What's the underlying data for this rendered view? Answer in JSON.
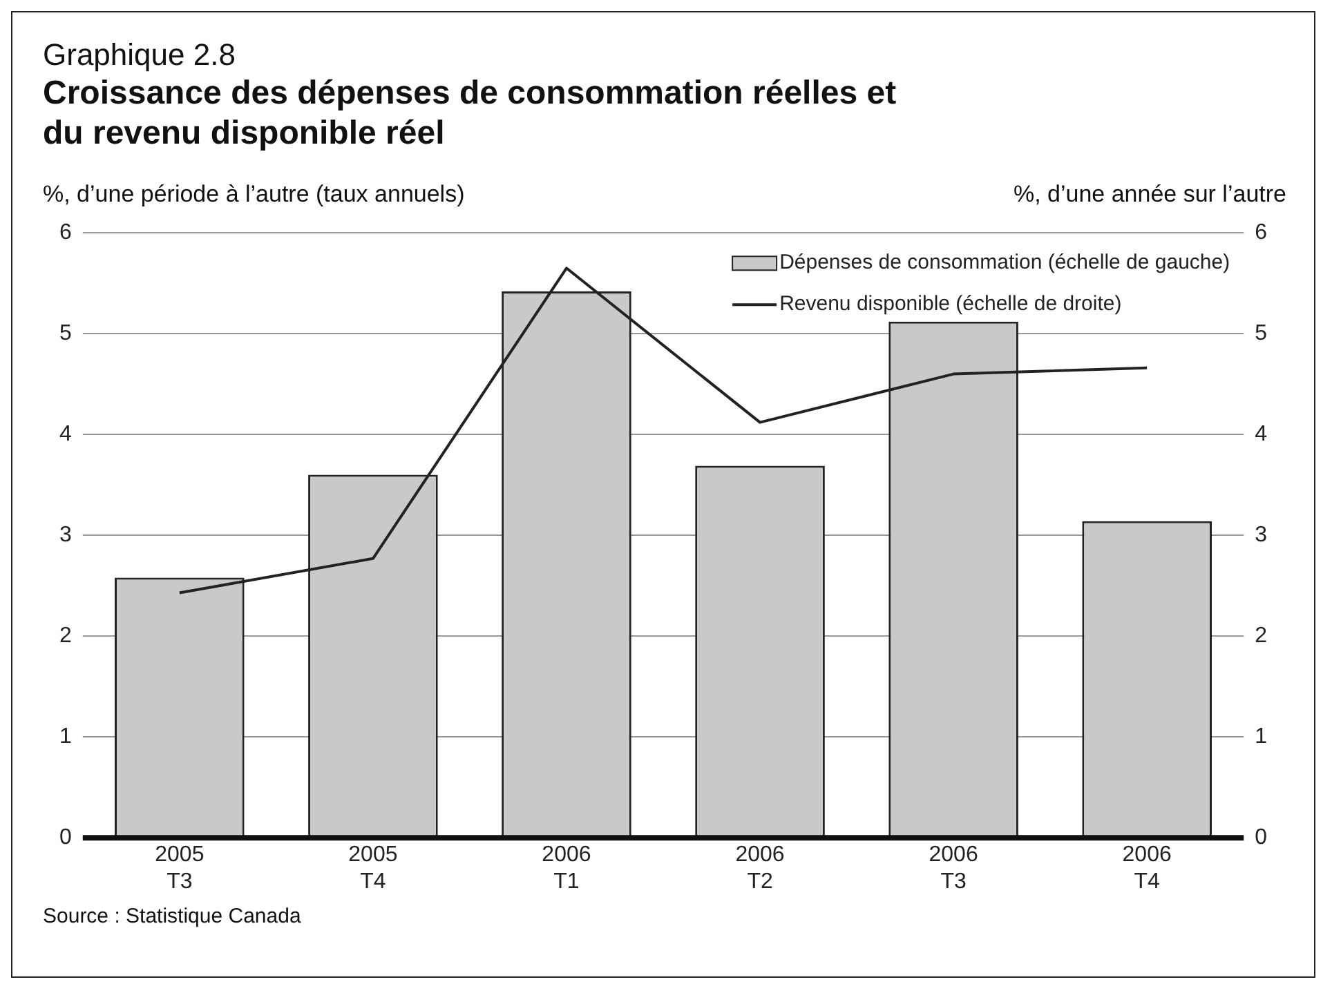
{
  "chart_data": {
    "type": "bar",
    "title": "Graphique 2.8",
    "subtitle": "Croissance des dépenses de consommation réelles et du revenu disponible réel",
    "ylabel": "%, d’une période à l’autre (taux annuels)",
    "y2label": "%, d’une année sur l’autre",
    "categories": [
      "2005 T3",
      "2005 T4",
      "2006 T1",
      "2006 T2",
      "2006 T3",
      "2006 T4"
    ],
    "series": [
      {
        "name": "Dépenses de consommation (échelle de gauche)",
        "color": "#c8c9cb",
        "values": [
          2.58,
          3.6,
          5.42,
          3.69,
          5.12,
          3.14
        ]
      },
      {
        "name": "Revenu disponible (échelle de droite)",
        "type": "line",
        "axis": "y2",
        "color": "#222222",
        "values": [
          2.43,
          2.77,
          5.65,
          4.12,
          4.6,
          4.66
        ]
      }
    ],
    "ylim": [
      0,
      6
    ],
    "yticks": [
      0,
      1,
      2,
      3,
      4,
      5,
      6
    ],
    "y2lim": [
      0,
      6
    ],
    "y2ticks": [
      0,
      1,
      2,
      3,
      4,
      5,
      6
    ],
    "grid": "y",
    "legend": "top right",
    "marker": "none",
    "annotations": [
      "Source : Statistique Canada"
    ]
  }
}
